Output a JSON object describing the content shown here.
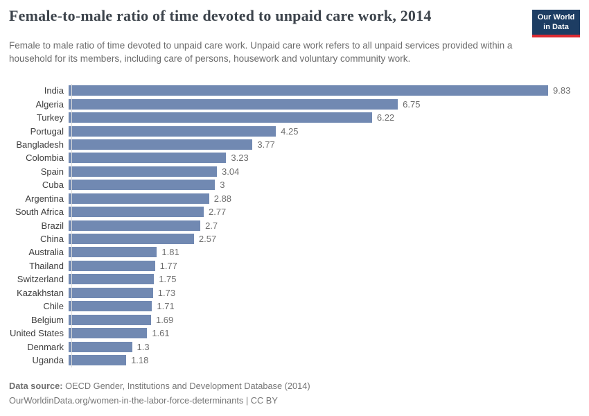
{
  "header": {
    "title": "Female-to-male ratio of time devoted to unpaid care work, 2014",
    "subtitle": "Female to male ratio of time devoted to unpaid care work. Unpaid care work refers to all unpaid services provided within a household for its members, including care of persons, housework and voluntary community work."
  },
  "logo": {
    "line1": "Our World",
    "line2": "in Data",
    "background_color": "#1d3d63",
    "accent_color": "#dc2b32"
  },
  "chart_data": {
    "type": "bar",
    "orientation": "horizontal",
    "title": "Female-to-male ratio of time devoted to unpaid care work, 2014",
    "categories": [
      "India",
      "Algeria",
      "Turkey",
      "Portugal",
      "Bangladesh",
      "Colombia",
      "Spain",
      "Cuba",
      "Argentina",
      "South Africa",
      "Brazil",
      "China",
      "Australia",
      "Thailand",
      "Switzerland",
      "Kazakhstan",
      "Chile",
      "Belgium",
      "United States",
      "Denmark",
      "Uganda"
    ],
    "values": [
      9.83,
      6.75,
      6.22,
      4.25,
      3.77,
      3.23,
      3.04,
      3,
      2.88,
      2.77,
      2.7,
      2.57,
      1.81,
      1.77,
      1.75,
      1.73,
      1.71,
      1.69,
      1.61,
      1.3,
      1.18
    ],
    "value_labels": [
      "9.83",
      "6.75",
      "6.22",
      "4.25",
      "3.77",
      "3.23",
      "3.04",
      "3",
      "2.88",
      "2.77",
      "2.7",
      "2.57",
      "1.81",
      "1.77",
      "1.75",
      "1.73",
      "1.71",
      "1.69",
      "1.61",
      "1.3",
      "1.18"
    ],
    "xlabel": "",
    "ylabel": "",
    "xlim": [
      0,
      9.83
    ],
    "grid": false,
    "legend": false,
    "value_labels_position": "end-of-bar",
    "bar_color": "#7189b2",
    "label_color": "#3d3d3d",
    "value_color": "#6e6e6e"
  },
  "footer": {
    "source_label": "Data source:",
    "source_text": " OECD Gender, Institutions and Development Database (2014)",
    "link_line": "OurWorldinData.org/women-in-the-labor-force-determinants | CC BY"
  }
}
